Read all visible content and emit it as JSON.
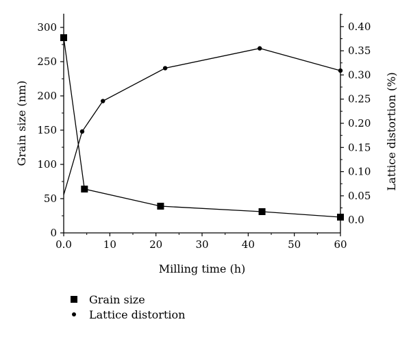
{
  "chart_data": {
    "type": "line",
    "title": "",
    "xlabel": "Milling time (h)",
    "ylabel": "Grain size (nm)",
    "y2label": "Lattice distortion (%)",
    "xlim": [
      0,
      60
    ],
    "ylim": [
      0,
      320
    ],
    "y2lim": [
      -0.0267,
      0.4267
    ],
    "xticks": [
      0,
      10,
      20,
      30,
      40,
      50,
      60
    ],
    "yticks": [
      0,
      50,
      100,
      150,
      200,
      250,
      300
    ],
    "y2ticks": [
      0.0,
      0.05,
      0.1,
      0.15,
      0.2,
      0.25,
      0.3,
      0.35,
      0.4
    ],
    "y2tick_labels": [
      "0.0",
      "0.05",
      "0.10",
      "0.15",
      "0.20",
      "0.25",
      "0.30",
      "0.35",
      "0.40"
    ],
    "grid": false,
    "series": [
      {
        "name": "Grain size",
        "axis": "left",
        "marker": "square",
        "x": [
          0,
          4.5,
          21,
          43,
          60
        ],
        "y": [
          285,
          64,
          39,
          31,
          23
        ]
      },
      {
        "name": "Lattice distortion",
        "axis": "right",
        "marker": "circle",
        "x": [
          0,
          4,
          8.5,
          22,
          42.5,
          60
        ],
        "y": [
          0.052,
          0.183,
          0.246,
          0.314,
          0.355,
          0.309
        ]
      }
    ]
  },
  "legend": {
    "items": [
      {
        "label": "Grain size",
        "marker": "square"
      },
      {
        "label": "Lattice distortion",
        "marker": "circle"
      }
    ]
  }
}
